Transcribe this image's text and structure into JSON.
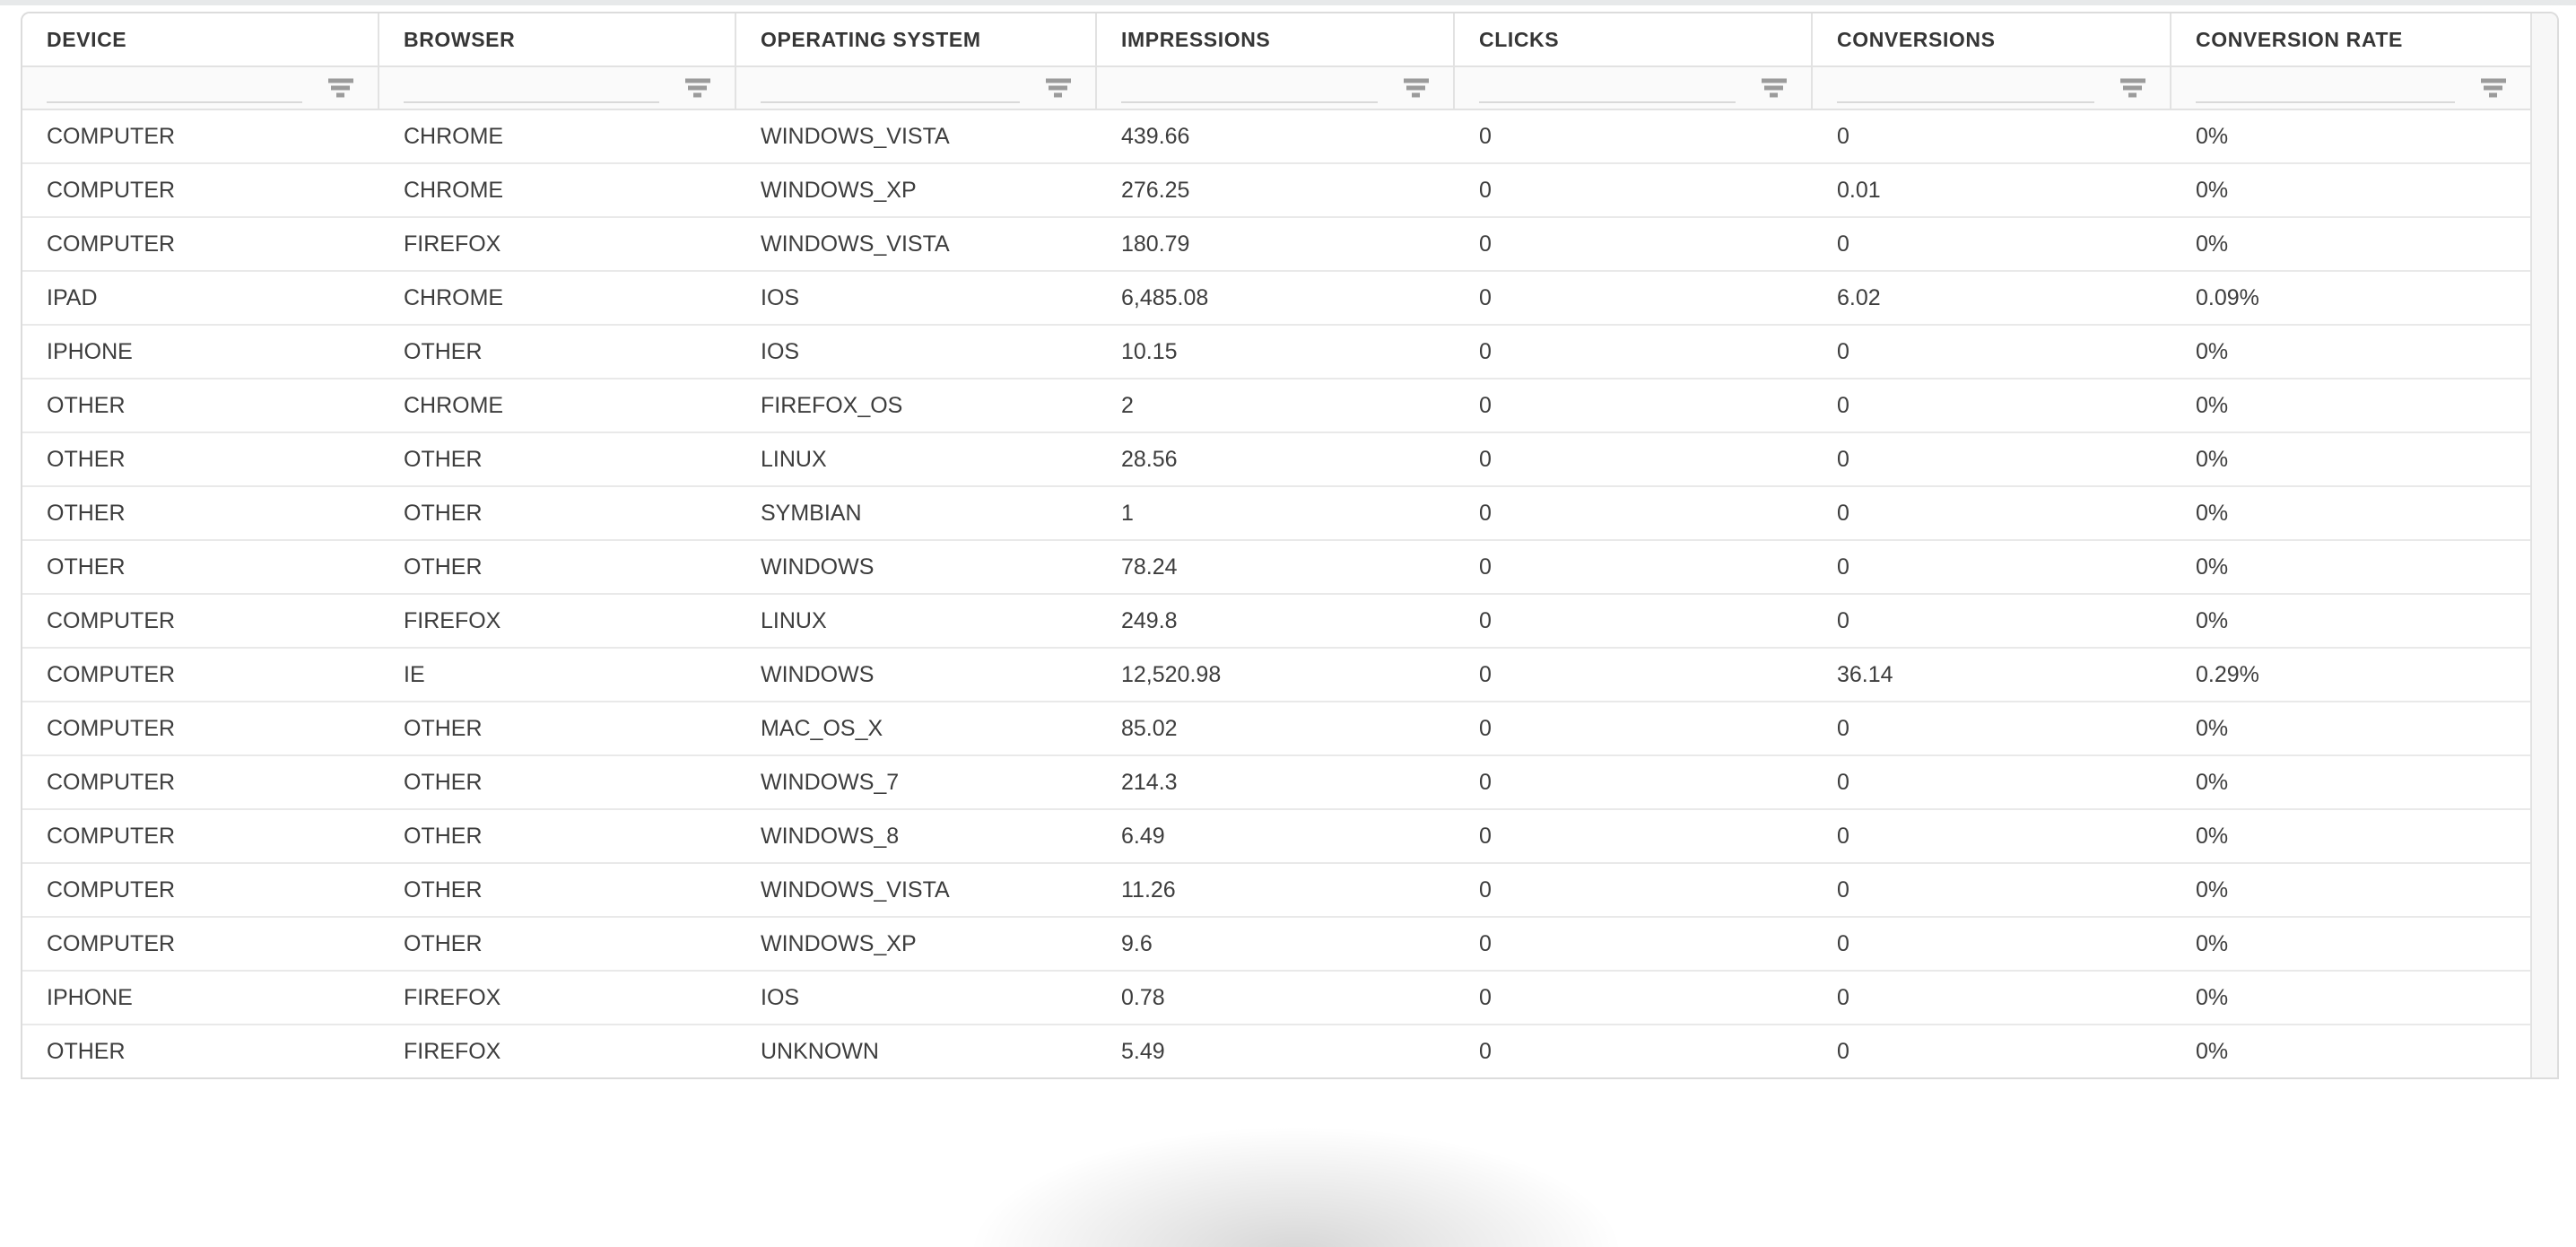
{
  "colors": {
    "top_strip": "#e7e9ea",
    "frame_border": "#dcdcdc",
    "header_border": "#e2e2e2",
    "row_border": "#e9e9e9",
    "filter_row_bg": "#fafafa",
    "filter_underline": "#d9d9d9",
    "filter_icon": "#9b9b9b",
    "header_text": "#363636",
    "cell_text": "#3d3d3d",
    "scroll_gutter_bg": "#f7f7f7"
  },
  "table": {
    "columns": [
      {
        "id": "device",
        "label": "DEVICE"
      },
      {
        "id": "browser",
        "label": "BROWSER"
      },
      {
        "id": "operating-system",
        "label": "OPERATING SYSTEM"
      },
      {
        "id": "impressions",
        "label": "IMPRESSIONS"
      },
      {
        "id": "clicks",
        "label": "CLICKS"
      },
      {
        "id": "conversions",
        "label": "CONVERSIONS"
      },
      {
        "id": "conversion-rate",
        "label": "CONVERSION RATE"
      }
    ],
    "filters": [
      {
        "value": "",
        "placeholder": "",
        "icon": "filter-icon"
      },
      {
        "value": "",
        "placeholder": "",
        "icon": "filter-icon"
      },
      {
        "value": "",
        "placeholder": "",
        "icon": "filter-icon"
      },
      {
        "value": "",
        "placeholder": "",
        "icon": "filter-icon"
      },
      {
        "value": "",
        "placeholder": "",
        "icon": "filter-icon"
      },
      {
        "value": "",
        "placeholder": "",
        "icon": "filter-icon"
      },
      {
        "value": "",
        "placeholder": "",
        "icon": "filter-icon"
      }
    ],
    "rows": [
      [
        "COMPUTER",
        "CHROME",
        "WINDOWS_VISTA",
        "439.66",
        "0",
        "0",
        "0%"
      ],
      [
        "COMPUTER",
        "CHROME",
        "WINDOWS_XP",
        "276.25",
        "0",
        "0.01",
        "0%"
      ],
      [
        "COMPUTER",
        "FIREFOX",
        "WINDOWS_VISTA",
        "180.79",
        "0",
        "0",
        "0%"
      ],
      [
        "IPAD",
        "CHROME",
        "IOS",
        "6,485.08",
        "0",
        "6.02",
        "0.09%"
      ],
      [
        "IPHONE",
        "OTHER",
        "IOS",
        "10.15",
        "0",
        "0",
        "0%"
      ],
      [
        "OTHER",
        "CHROME",
        "FIREFOX_OS",
        "2",
        "0",
        "0",
        "0%"
      ],
      [
        "OTHER",
        "OTHER",
        "LINUX",
        "28.56",
        "0",
        "0",
        "0%"
      ],
      [
        "OTHER",
        "OTHER",
        "SYMBIAN",
        "1",
        "0",
        "0",
        "0%"
      ],
      [
        "OTHER",
        "OTHER",
        "WINDOWS",
        "78.24",
        "0",
        "0",
        "0%"
      ],
      [
        "COMPUTER",
        "FIREFOX",
        "LINUX",
        "249.8",
        "0",
        "0",
        "0%"
      ],
      [
        "COMPUTER",
        "IE",
        "WINDOWS",
        "12,520.98",
        "0",
        "36.14",
        "0.29%"
      ],
      [
        "COMPUTER",
        "OTHER",
        "MAC_OS_X",
        "85.02",
        "0",
        "0",
        "0%"
      ],
      [
        "COMPUTER",
        "OTHER",
        "WINDOWS_7",
        "214.3",
        "0",
        "0",
        "0%"
      ],
      [
        "COMPUTER",
        "OTHER",
        "WINDOWS_8",
        "6.49",
        "0",
        "0",
        "0%"
      ],
      [
        "COMPUTER",
        "OTHER",
        "WINDOWS_VISTA",
        "11.26",
        "0",
        "0",
        "0%"
      ],
      [
        "COMPUTER",
        "OTHER",
        "WINDOWS_XP",
        "9.6",
        "0",
        "0",
        "0%"
      ],
      [
        "IPHONE",
        "FIREFOX",
        "IOS",
        "0.78",
        "0",
        "0",
        "0%"
      ],
      [
        "OTHER",
        "FIREFOX",
        "UNKNOWN",
        "5.49",
        "0",
        "0",
        "0%"
      ]
    ]
  }
}
